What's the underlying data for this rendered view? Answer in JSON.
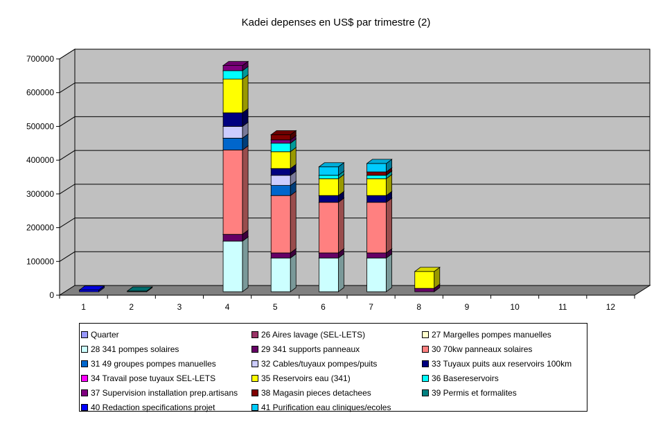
{
  "chart_data": {
    "type": "bar",
    "stacked": true,
    "three_d": true,
    "title": "Kadei depenses en US$ par trimestre (2)",
    "xlabel": "",
    "ylabel": "",
    "ylim": [
      0,
      700000
    ],
    "yticks": [
      "0",
      "100000",
      "200000",
      "300000",
      "400000",
      "500000",
      "600000",
      "700000"
    ],
    "ytick_values": [
      0,
      100000,
      200000,
      300000,
      400000,
      500000,
      600000,
      700000
    ],
    "categories": [
      "1",
      "2",
      "3",
      "4",
      "5",
      "6",
      "7",
      "8",
      "9",
      "10",
      "11",
      "12"
    ],
    "grid": true,
    "legend_position": "bottom",
    "colors": {
      "wall": "#c0c0c0",
      "floor": "#808080",
      "gridline": "#000000"
    },
    "series": [
      {
        "name": "Quarter",
        "color": "#9999ff",
        "values": [
          0,
          0,
          0,
          0,
          0,
          0,
          0,
          0,
          0,
          0,
          0,
          0
        ]
      },
      {
        "name": "26 Aires lavage (SEL-LETS)",
        "color": "#993366",
        "values": [
          0,
          0,
          0,
          0,
          0,
          0,
          0,
          0,
          0,
          0,
          0,
          0
        ]
      },
      {
        "name": "27 Margelles pompes manuelles",
        "color": "#ffffcc",
        "values": [
          0,
          0,
          0,
          0,
          0,
          0,
          0,
          0,
          0,
          0,
          0,
          0
        ]
      },
      {
        "name": "28 341 pompes solaires",
        "color": "#ccffff",
        "values": [
          0,
          0,
          0,
          150000,
          100000,
          100000,
          100000,
          0,
          0,
          0,
          0,
          0
        ]
      },
      {
        "name": "29 341 supports panneaux",
        "color": "#660066",
        "values": [
          0,
          0,
          0,
          20000,
          15000,
          15000,
          15000,
          10000,
          0,
          0,
          0,
          0
        ]
      },
      {
        "name": "30 70kw panneaux solaires",
        "color": "#ff8080",
        "values": [
          0,
          0,
          0,
          250000,
          170000,
          150000,
          150000,
          0,
          0,
          0,
          0,
          0
        ]
      },
      {
        "name": "31 49 groupes pompes manuelles",
        "color": "#0066cc",
        "values": [
          0,
          0,
          0,
          35000,
          30000,
          0,
          0,
          0,
          0,
          0,
          0,
          0
        ]
      },
      {
        "name": "32 Cables/tuyaux pompes/puits",
        "color": "#ccccff",
        "values": [
          0,
          0,
          0,
          35000,
          30000,
          0,
          0,
          0,
          0,
          0,
          0,
          0
        ]
      },
      {
        "name": "33 Tuyaux puits aux reservoirs 100km",
        "color": "#000080",
        "values": [
          0,
          0,
          0,
          40000,
          20000,
          20000,
          20000,
          0,
          0,
          0,
          0,
          0
        ]
      },
      {
        "name": "34 Travail pose tuyaux SEL-LETS",
        "color": "#ff00ff",
        "values": [
          0,
          0,
          0,
          0,
          0,
          0,
          0,
          0,
          0,
          0,
          0,
          0
        ]
      },
      {
        "name": "35 Reservoirs eau (341)",
        "color": "#ffff00",
        "values": [
          0,
          0,
          0,
          100000,
          50000,
          50000,
          50000,
          50000,
          0,
          0,
          0,
          0
        ]
      },
      {
        "name": "36 Basereservoirs",
        "color": "#00ffff",
        "values": [
          0,
          0,
          0,
          25000,
          25000,
          10000,
          10000,
          0,
          0,
          0,
          0,
          0
        ]
      },
      {
        "name": "37 Supervision installation prep.artisans",
        "color": "#800080",
        "values": [
          0,
          0,
          0,
          15000,
          10000,
          0,
          0,
          0,
          0,
          0,
          0,
          0
        ]
      },
      {
        "name": "38 Magasin pieces detachees",
        "color": "#800000",
        "values": [
          0,
          0,
          0,
          0,
          15000,
          0,
          10000,
          0,
          0,
          0,
          0,
          0
        ]
      },
      {
        "name": "39 Permis et formalites",
        "color": "#008080",
        "values": [
          0,
          2000,
          0,
          0,
          0,
          0,
          0,
          0,
          0,
          0,
          0,
          0
        ]
      },
      {
        "name": "40 Redaction specifications projet",
        "color": "#0000ff",
        "values": [
          5000,
          0,
          0,
          0,
          0,
          0,
          0,
          0,
          0,
          0,
          0,
          0
        ]
      },
      {
        "name": "41 Purification eau cliniques/ecoles",
        "color": "#00ccff",
        "values": [
          0,
          0,
          0,
          0,
          0,
          25000,
          25000,
          0,
          0,
          0,
          0,
          0
        ]
      }
    ]
  }
}
